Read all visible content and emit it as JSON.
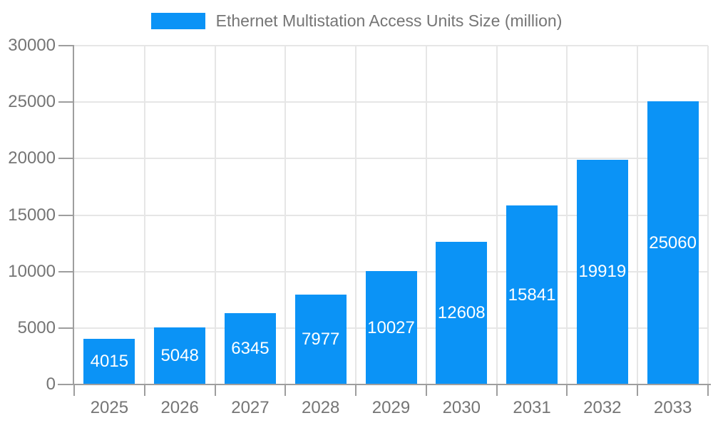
{
  "legend": {
    "label": "Ethernet Multistation Access Units Size (million)"
  },
  "chart_data": {
    "type": "bar",
    "title": "Ethernet Multistation Access Units Size (million)",
    "series_name": "Ethernet Multistation Access Units Size (million)",
    "categories": [
      "2025",
      "2026",
      "2027",
      "2028",
      "2029",
      "2030",
      "2031",
      "2032",
      "2033"
    ],
    "values": [
      4015,
      5048,
      6345,
      7977,
      10027,
      12608,
      15841,
      19919,
      25060
    ],
    "value_labels": [
      "4015",
      "5048",
      "6345",
      "7977",
      "10027",
      "12608",
      "15841",
      "19919",
      "25060"
    ],
    "xlabel": "",
    "ylabel": "",
    "ylim": [
      0,
      30000
    ],
    "yticks": [
      0,
      5000,
      10000,
      15000,
      20000,
      25000,
      30000
    ],
    "ytick_labels": [
      "0",
      "5000",
      "10000",
      "15000",
      "20000",
      "25000",
      "30000"
    ],
    "grid": true,
    "legend_position": "top-center",
    "colors": {
      "bar": "#0b93f6",
      "bar_value_text": "#ffffff",
      "axis_text": "#757575",
      "axis_line": "#9e9e9e",
      "gridline": "#e6e6e6",
      "background": "#ffffff"
    }
  }
}
